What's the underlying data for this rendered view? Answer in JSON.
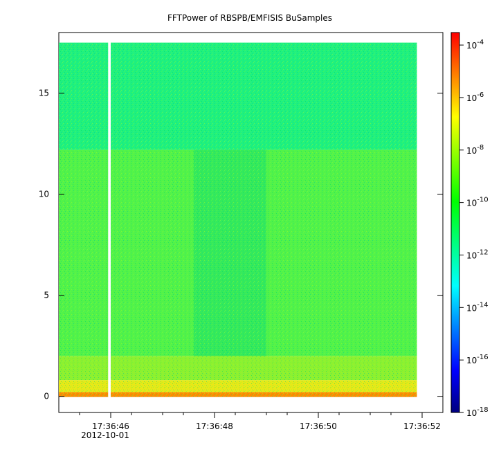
{
  "chart_data": {
    "type": "heatmap",
    "title": "FFTPower of RBSPB/EMFISIS  BuSamples",
    "xlabel": "",
    "ylabel": "",
    "x_range": [
      "17:36:45.0",
      "17:36:52.4"
    ],
    "y_range": [
      -0.8,
      18.0
    ],
    "x_ticks": [
      {
        "value": "17:36:46",
        "label": "17:36:46",
        "sublabel": "2012-10-01"
      },
      {
        "value": "17:36:48",
        "label": "17:36:48",
        "sublabel": ""
      },
      {
        "value": "17:36:50",
        "label": "17:36:50",
        "sublabel": ""
      },
      {
        "value": "17:36:52",
        "label": "17:36:52",
        "sublabel": ""
      }
    ],
    "x_minor_ticks": [
      "17:36:45.4",
      "17:36:46.4",
      "17:36:47.0",
      "17:36:47.4",
      "17:36:48.4",
      "17:36:49.0",
      "17:36:49.4",
      "17:36:50.4",
      "17:36:51.0",
      "17:36:51.4"
    ],
    "y_ticks": [
      0,
      5,
      10,
      15
    ],
    "data_extent": {
      "x_start": "17:36:45.0",
      "x_end": "17:36:51.9",
      "y_start": 0.0,
      "y_end": 17.5
    },
    "data_gap": {
      "x_start": "17:36:45.95",
      "x_end": "17:36:46.0"
    },
    "colorbar": {
      "scale": "log",
      "range": [
        1e-18,
        0.0003
      ],
      "colormap": [
        "#00007f",
        "#0000ff",
        "#0080ff",
        "#00ffff",
        "#00ff80",
        "#00ff00",
        "#80ff00",
        "#ffff00",
        "#ff8000",
        "#ff0000"
      ],
      "ticks": [
        {
          "value": 0.0001,
          "label": "10",
          "exp": "-4"
        },
        {
          "value": 1e-06,
          "label": "10",
          "exp": "-6"
        },
        {
          "value": 1e-08,
          "label": "10",
          "exp": "-8"
        },
        {
          "value": 1e-10,
          "label": "10",
          "exp": "-10"
        },
        {
          "value": 1e-12,
          "label": "10",
          "exp": "-12"
        },
        {
          "value": 1e-14,
          "label": "10",
          "exp": "-14"
        },
        {
          "value": 1e-16,
          "label": "10",
          "exp": "-16"
        },
        {
          "value": 1e-18,
          "label": "10",
          "exp": "-18"
        }
      ]
    }
  }
}
